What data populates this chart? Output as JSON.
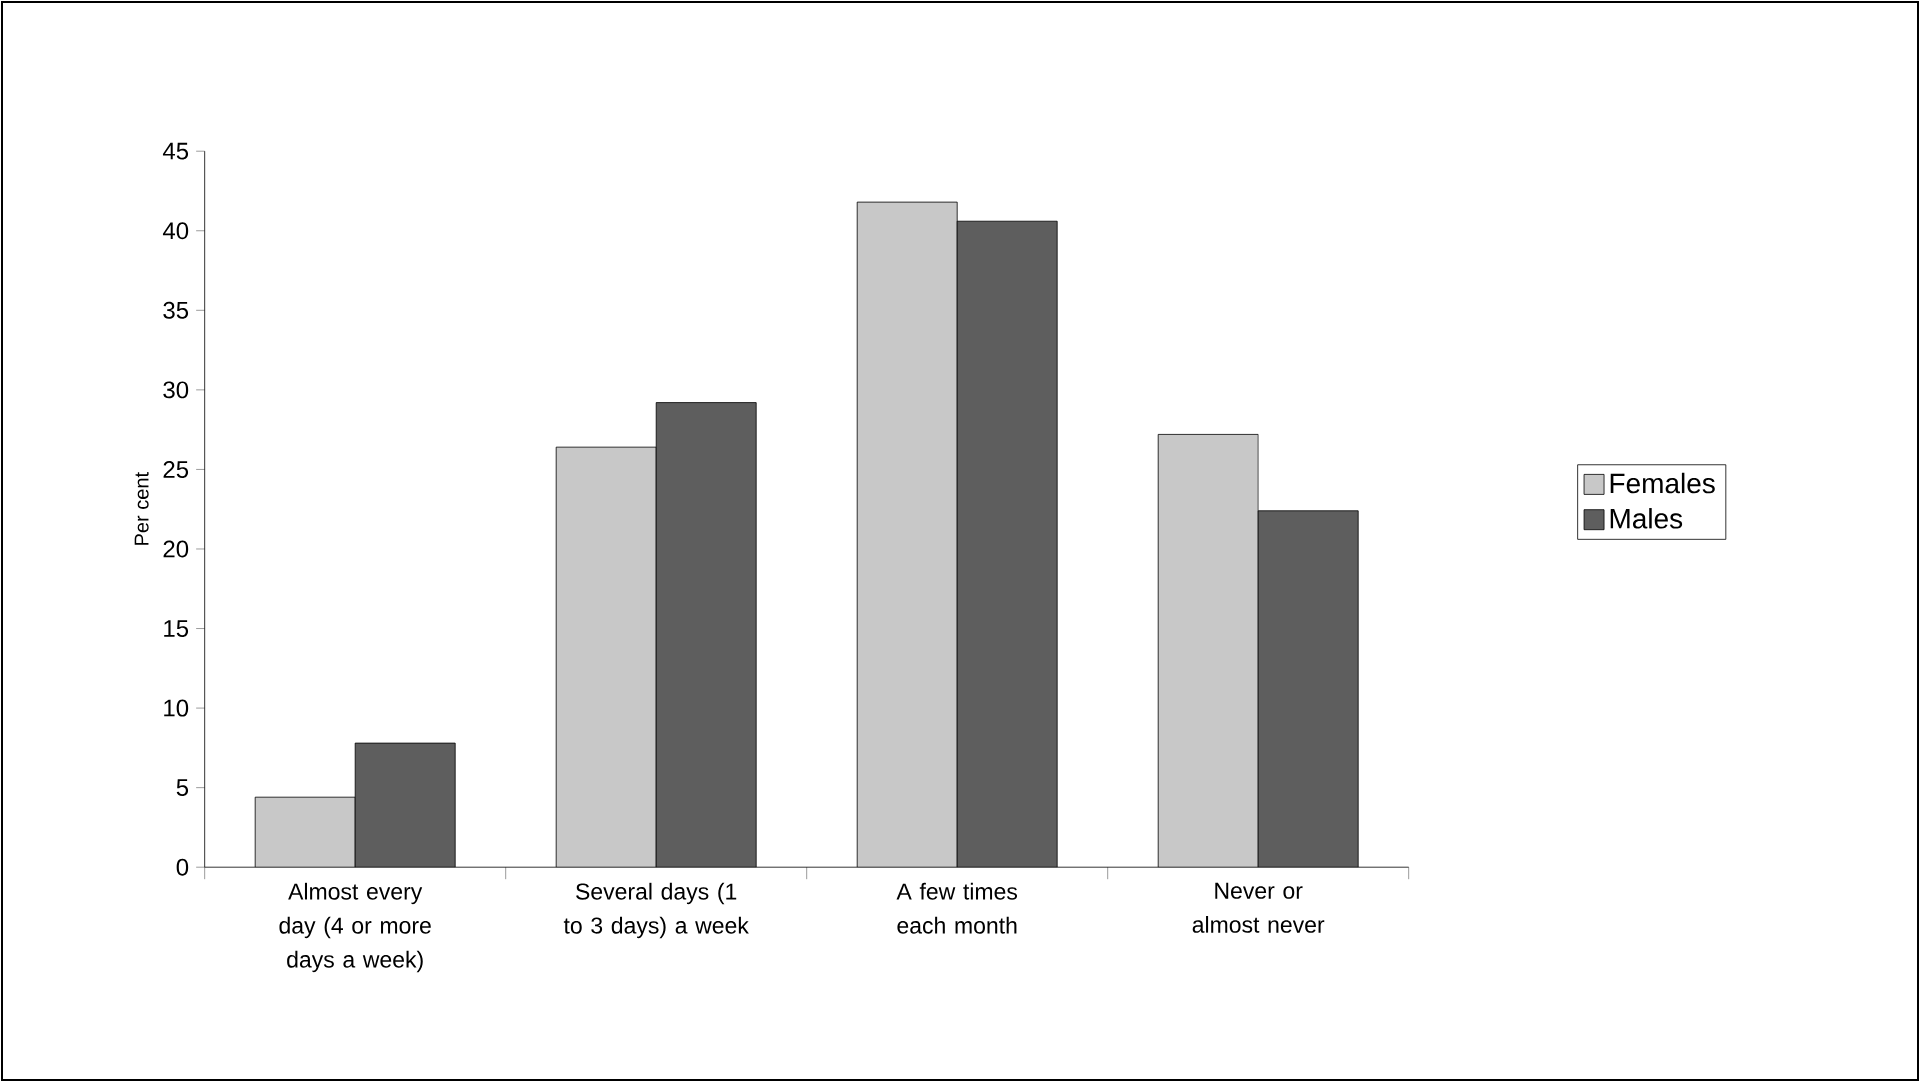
{
  "chart_data": {
    "type": "bar",
    "ylabel": "Per cent",
    "categories": [
      "Almost every day (4 or more days a week)",
      "Several days (1 to 3 days) a week",
      "A few times each month",
      "Never or almost never"
    ],
    "series": [
      {
        "name": "Females",
        "color": "#c8c8c8",
        "values": [
          4.4,
          26.4,
          41.8,
          27.2
        ]
      },
      {
        "name": "Males",
        "color": "#5e5e5e",
        "values": [
          7.8,
          29.2,
          40.6,
          22.4
        ]
      }
    ],
    "ylim": [
      0,
      45
    ],
    "yticks": [
      0,
      5,
      10,
      15,
      20,
      25,
      30,
      35,
      40,
      45
    ],
    "grid": false,
    "legend": "right"
  }
}
